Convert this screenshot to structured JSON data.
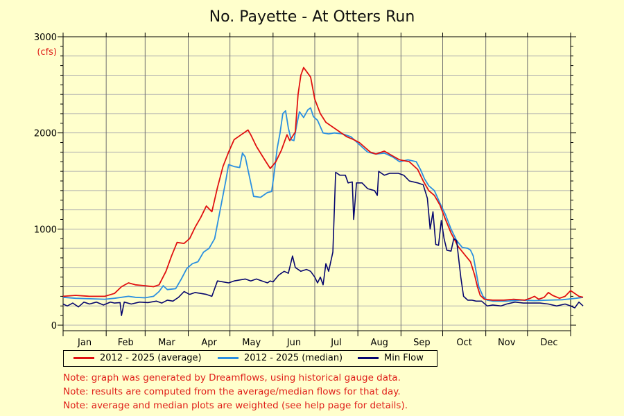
{
  "chart_data": {
    "type": "line",
    "title": "No. Payette - At Otters Run",
    "ylabel": "(cfs)",
    "ylim": [
      0,
      3000
    ],
    "yticks": [
      "0",
      "1000",
      "2000",
      "3000"
    ],
    "x_axis": "day of year",
    "months": [
      "Jan",
      "Feb",
      "Mar",
      "Apr",
      "May",
      "Jun",
      "Jul",
      "Aug",
      "Sep",
      "Oct",
      "Nov",
      "Dec"
    ],
    "grid": true,
    "legend_placement": "bottom",
    "series": [
      {
        "name": "2012 - 2025 (average)",
        "color": "#e01010",
        "points": [
          [
            1,
            300
          ],
          [
            10,
            310
          ],
          [
            20,
            300
          ],
          [
            31,
            300
          ],
          [
            38,
            330
          ],
          [
            43,
            400
          ],
          [
            48,
            440
          ],
          [
            53,
            420
          ],
          [
            60,
            410
          ],
          [
            66,
            400
          ],
          [
            70,
            420
          ],
          [
            75,
            560
          ],
          [
            79,
            720
          ],
          [
            83,
            860
          ],
          [
            88,
            850
          ],
          [
            92,
            900
          ],
          [
            96,
            1020
          ],
          [
            100,
            1120
          ],
          [
            104,
            1240
          ],
          [
            108,
            1180
          ],
          [
            112,
            1430
          ],
          [
            116,
            1650
          ],
          [
            120,
            1800
          ],
          [
            124,
            1930
          ],
          [
            128,
            1970
          ],
          [
            132,
            2010
          ],
          [
            134,
            2030
          ],
          [
            136,
            1980
          ],
          [
            140,
            1860
          ],
          [
            146,
            1720
          ],
          [
            150,
            1630
          ],
          [
            154,
            1700
          ],
          [
            158,
            1820
          ],
          [
            162,
            1980
          ],
          [
            164,
            1920
          ],
          [
            168,
            2010
          ],
          [
            170,
            2400
          ],
          [
            172,
            2600
          ],
          [
            174,
            2680
          ],
          [
            176,
            2640
          ],
          [
            179,
            2580
          ],
          [
            182,
            2350
          ],
          [
            186,
            2200
          ],
          [
            190,
            2110
          ],
          [
            194,
            2070
          ],
          [
            200,
            2010
          ],
          [
            205,
            1960
          ],
          [
            210,
            1930
          ],
          [
            214,
            1900
          ],
          [
            218,
            1850
          ],
          [
            222,
            1800
          ],
          [
            226,
            1780
          ],
          [
            232,
            1810
          ],
          [
            238,
            1760
          ],
          [
            243,
            1720
          ],
          [
            250,
            1700
          ],
          [
            256,
            1620
          ],
          [
            260,
            1500
          ],
          [
            264,
            1400
          ],
          [
            268,
            1350
          ],
          [
            272,
            1250
          ],
          [
            276,
            1100
          ],
          [
            280,
            960
          ],
          [
            285,
            820
          ],
          [
            290,
            730
          ],
          [
            294,
            660
          ],
          [
            297,
            520
          ],
          [
            299,
            400
          ],
          [
            301,
            310
          ],
          [
            304,
            270
          ],
          [
            310,
            260
          ],
          [
            318,
            260
          ],
          [
            325,
            270
          ],
          [
            333,
            260
          ],
          [
            337,
            280
          ],
          [
            340,
            300
          ],
          [
            343,
            270
          ],
          [
            347,
            290
          ],
          [
            350,
            340
          ],
          [
            353,
            310
          ],
          [
            358,
            280
          ],
          [
            362,
            300
          ],
          [
            366,
            360
          ],
          [
            369,
            330
          ],
          [
            372,
            300
          ],
          [
            375,
            290
          ]
        ]
      },
      {
        "name": "2012 - 2025 (median)",
        "color": "#2a8fe0",
        "points": [
          [
            1,
            290
          ],
          [
            10,
            280
          ],
          [
            20,
            275
          ],
          [
            31,
            270
          ],
          [
            38,
            280
          ],
          [
            43,
            290
          ],
          [
            48,
            300
          ],
          [
            53,
            290
          ],
          [
            60,
            285
          ],
          [
            66,
            300
          ],
          [
            70,
            350
          ],
          [
            73,
            410
          ],
          [
            76,
            370
          ],
          [
            82,
            380
          ],
          [
            86,
            480
          ],
          [
            90,
            590
          ],
          [
            94,
            640
          ],
          [
            98,
            660
          ],
          [
            102,
            760
          ],
          [
            106,
            800
          ],
          [
            110,
            900
          ],
          [
            114,
            1200
          ],
          [
            118,
            1500
          ],
          [
            120,
            1670
          ],
          [
            124,
            1650
          ],
          [
            128,
            1640
          ],
          [
            130,
            1790
          ],
          [
            132,
            1750
          ],
          [
            136,
            1480
          ],
          [
            138,
            1340
          ],
          [
            143,
            1330
          ],
          [
            148,
            1380
          ],
          [
            151,
            1390
          ],
          [
            153,
            1600
          ],
          [
            155,
            1840
          ],
          [
            157,
            2000
          ],
          [
            159,
            2200
          ],
          [
            161,
            2230
          ],
          [
            163,
            2050
          ],
          [
            165,
            1930
          ],
          [
            167,
            1920
          ],
          [
            169,
            2080
          ],
          [
            171,
            2220
          ],
          [
            174,
            2160
          ],
          [
            177,
            2240
          ],
          [
            179,
            2260
          ],
          [
            181,
            2170
          ],
          [
            184,
            2130
          ],
          [
            188,
            2000
          ],
          [
            192,
            1990
          ],
          [
            196,
            2000
          ],
          [
            202,
            1990
          ],
          [
            208,
            1960
          ],
          [
            214,
            1880
          ],
          [
            220,
            1800
          ],
          [
            226,
            1780
          ],
          [
            232,
            1790
          ],
          [
            238,
            1750
          ],
          [
            243,
            1700
          ],
          [
            249,
            1720
          ],
          [
            255,
            1700
          ],
          [
            258,
            1620
          ],
          [
            261,
            1520
          ],
          [
            264,
            1450
          ],
          [
            268,
            1400
          ],
          [
            272,
            1270
          ],
          [
            276,
            1150
          ],
          [
            280,
            1000
          ],
          [
            284,
            880
          ],
          [
            288,
            810
          ],
          [
            292,
            800
          ],
          [
            294,
            780
          ],
          [
            296,
            720
          ],
          [
            298,
            560
          ],
          [
            300,
            400
          ],
          [
            303,
            300
          ],
          [
            306,
            260
          ],
          [
            310,
            250
          ],
          [
            320,
            250
          ],
          [
            330,
            260
          ],
          [
            340,
            255
          ],
          [
            350,
            260
          ],
          [
            360,
            265
          ],
          [
            370,
            280
          ],
          [
            375,
            290
          ]
        ]
      },
      {
        "name": "Min Flow",
        "color": "#06066e",
        "points": [
          [
            1,
            220
          ],
          [
            4,
            200
          ],
          [
            8,
            230
          ],
          [
            12,
            190
          ],
          [
            16,
            240
          ],
          [
            20,
            220
          ],
          [
            25,
            240
          ],
          [
            30,
            210
          ],
          [
            35,
            240
          ],
          [
            38,
            230
          ],
          [
            42,
            235
          ],
          [
            43,
            100
          ],
          [
            45,
            240
          ],
          [
            50,
            220
          ],
          [
            56,
            240
          ],
          [
            62,
            235
          ],
          [
            68,
            250
          ],
          [
            72,
            230
          ],
          [
            76,
            260
          ],
          [
            80,
            250
          ],
          [
            84,
            290
          ],
          [
            88,
            350
          ],
          [
            92,
            320
          ],
          [
            96,
            340
          ],
          [
            100,
            330
          ],
          [
            104,
            320
          ],
          [
            108,
            300
          ],
          [
            112,
            460
          ],
          [
            116,
            450
          ],
          [
            120,
            440
          ],
          [
            124,
            460
          ],
          [
            128,
            470
          ],
          [
            132,
            480
          ],
          [
            136,
            460
          ],
          [
            140,
            480
          ],
          [
            144,
            460
          ],
          [
            148,
            440
          ],
          [
            150,
            460
          ],
          [
            152,
            450
          ],
          [
            156,
            520
          ],
          [
            160,
            560
          ],
          [
            163,
            540
          ],
          [
            166,
            720
          ],
          [
            168,
            600
          ],
          [
            172,
            560
          ],
          [
            176,
            580
          ],
          [
            179,
            560
          ],
          [
            182,
            500
          ],
          [
            184,
            440
          ],
          [
            186,
            500
          ],
          [
            188,
            420
          ],
          [
            190,
            640
          ],
          [
            192,
            560
          ],
          [
            195,
            760
          ],
          [
            197,
            1590
          ],
          [
            200,
            1560
          ],
          [
            204,
            1560
          ],
          [
            206,
            1480
          ],
          [
            209,
            1490
          ],
          [
            210,
            1100
          ],
          [
            212,
            1480
          ],
          [
            216,
            1480
          ],
          [
            220,
            1420
          ],
          [
            225,
            1400
          ],
          [
            227,
            1350
          ],
          [
            228,
            1600
          ],
          [
            232,
            1560
          ],
          [
            236,
            1580
          ],
          [
            242,
            1580
          ],
          [
            246,
            1560
          ],
          [
            250,
            1500
          ],
          [
            256,
            1480
          ],
          [
            260,
            1460
          ],
          [
            263,
            1320
          ],
          [
            265,
            1000
          ],
          [
            267,
            1180
          ],
          [
            269,
            840
          ],
          [
            271,
            830
          ],
          [
            273,
            1090
          ],
          [
            275,
            900
          ],
          [
            277,
            780
          ],
          [
            280,
            770
          ],
          [
            282,
            900
          ],
          [
            284,
            880
          ],
          [
            287,
            500
          ],
          [
            289,
            300
          ],
          [
            292,
            260
          ],
          [
            295,
            260
          ],
          [
            298,
            250
          ],
          [
            302,
            250
          ],
          [
            306,
            200
          ],
          [
            310,
            210
          ],
          [
            316,
            200
          ],
          [
            320,
            220
          ],
          [
            326,
            240
          ],
          [
            332,
            230
          ],
          [
            338,
            230
          ],
          [
            344,
            230
          ],
          [
            350,
            220
          ],
          [
            356,
            200
          ],
          [
            362,
            220
          ],
          [
            366,
            200
          ],
          [
            369,
            180
          ],
          [
            372,
            240
          ],
          [
            375,
            200
          ]
        ]
      }
    ]
  },
  "notes": [
    "Note: graph was generated by Dreamflows, using historical gauge data.",
    "Note: results are computed from the average/median flows for that day.",
    "Note: average and median plots are weighted (see help page for details)."
  ]
}
